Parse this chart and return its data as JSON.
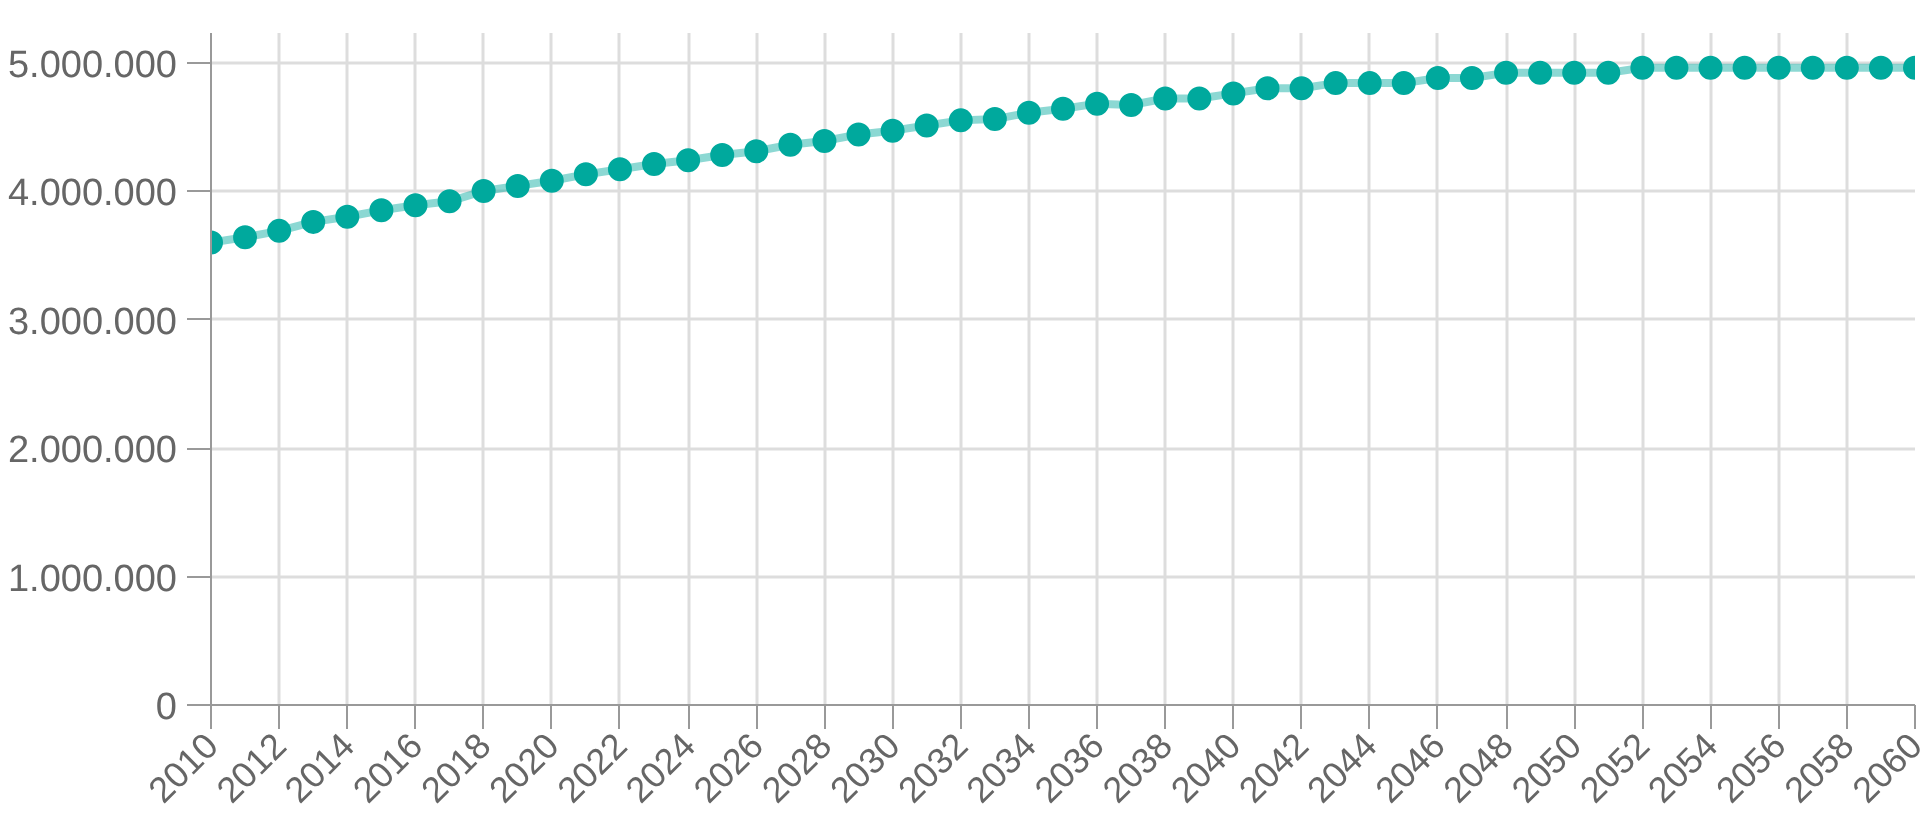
{
  "chart_data": {
    "type": "line",
    "x": [
      2010,
      2011,
      2012,
      2013,
      2014,
      2015,
      2016,
      2017,
      2018,
      2019,
      2020,
      2021,
      2022,
      2023,
      2024,
      2025,
      2026,
      2027,
      2028,
      2029,
      2030,
      2031,
      2032,
      2033,
      2034,
      2035,
      2036,
      2037,
      2038,
      2039,
      2040,
      2041,
      2042,
      2043,
      2044,
      2045,
      2046,
      2047,
      2048,
      2049,
      2050,
      2051,
      2052,
      2053,
      2054,
      2055,
      2056,
      2057,
      2058,
      2059,
      2060
    ],
    "series": [
      {
        "color": "#00a99d",
        "values": [
          3600000,
          3640000,
          3690000,
          3760000,
          3800000,
          3850000,
          3890000,
          3920000,
          4000000,
          4040000,
          4080000,
          4130000,
          4170000,
          4210000,
          4240000,
          4280000,
          4310000,
          4360000,
          4390000,
          4440000,
          4470000,
          4510000,
          4550000,
          4560000,
          4610000,
          4640000,
          4680000,
          4670000,
          4720000,
          4720000,
          4760000,
          4800000,
          4800000,
          4840000,
          4840000,
          4840000,
          4880000,
          4880000,
          4920000,
          4920000,
          4920000,
          4920000,
          4960000,
          4960000,
          4960000,
          4960000,
          4960000,
          4960000,
          4960000,
          4960000,
          4960000
        ]
      }
    ],
    "xlim": [
      2010,
      2060
    ],
    "ylim": [
      0,
      5230000
    ],
    "xticks": [
      2010,
      2012,
      2014,
      2016,
      2018,
      2020,
      2022,
      2024,
      2026,
      2028,
      2030,
      2032,
      2034,
      2036,
      2038,
      2040,
      2042,
      2044,
      2046,
      2048,
      2050,
      2052,
      2054,
      2056,
      2058,
      2060
    ],
    "yticks": [
      0,
      {
        "value": 1000000,
        "label": "1.000.000"
      },
      {
        "value": 2000000,
        "label": "2.000.000"
      },
      {
        "value": 3000000,
        "label": "3.000.000"
      },
      {
        "value": 4000000,
        "label": "4.000.000"
      },
      {
        "value": 5000000,
        "label": "5.000.000"
      }
    ],
    "grid": true,
    "marker": "circle",
    "line_style": "solid"
  }
}
